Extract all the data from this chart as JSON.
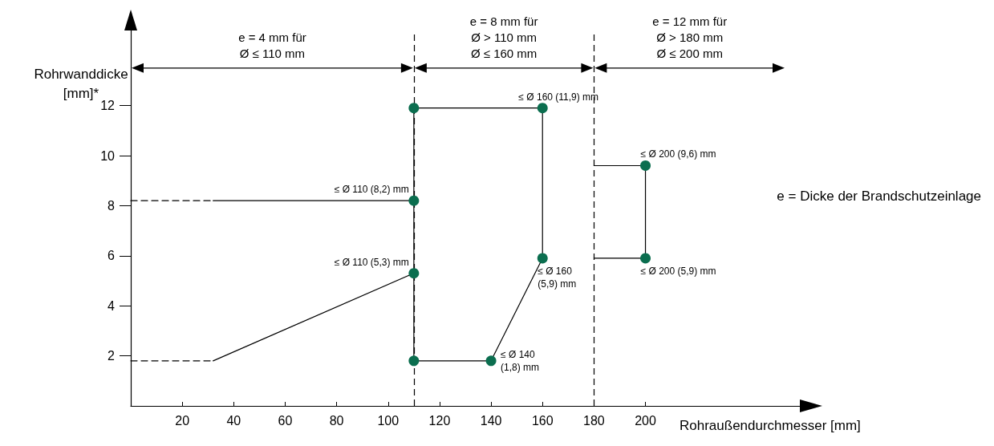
{
  "chart_data": {
    "type": "line",
    "xlabel": "Rohraußendurchmesser [mm]",
    "ylabel": "Rohrwanddicke\n[mm]*",
    "xlim": [
      0,
      260
    ],
    "xticks": [
      20,
      40,
      60,
      80,
      100,
      120,
      140,
      160,
      180,
      200
    ],
    "ylim": [
      0,
      15
    ],
    "yticks": [
      2,
      4,
      6,
      8,
      10,
      12
    ],
    "grid": false,
    "series": [
      {
        "color": "#000000",
        "line_style": "dashed",
        "marker": "none",
        "x": [
          0,
          32
        ],
        "values": [
          8.2,
          8.2
        ]
      },
      {
        "color": "#000000",
        "line_style": "solid",
        "marker": "none",
        "x": [
          32,
          110
        ],
        "values": [
          8.2,
          8.2
        ]
      },
      {
        "color": "#000000",
        "line_style": "dashed",
        "marker": "none",
        "x": [
          0,
          32
        ],
        "values": [
          1.8,
          1.8
        ]
      },
      {
        "color": "#000000",
        "line_style": "solid",
        "marker": "none",
        "x": [
          32,
          110
        ],
        "values": [
          1.8,
          5.3
        ]
      },
      {
        "color": "#000000",
        "line_style": "solid",
        "marker": "none",
        "x": [
          110,
          160
        ],
        "values": [
          11.9,
          11.9
        ]
      },
      {
        "color": "#000000",
        "line_style": "solid",
        "marker": "none",
        "x": [
          160,
          160
        ],
        "values": [
          11.9,
          5.9
        ]
      },
      {
        "color": "#000000",
        "line_style": "solid",
        "marker": "none",
        "x": [
          140,
          160
        ],
        "values": [
          1.8,
          5.9
        ]
      },
      {
        "color": "#000000",
        "line_style": "solid",
        "marker": "none",
        "x": [
          110,
          140
        ],
        "values": [
          1.8,
          1.8
        ]
      },
      {
        "color": "#000000",
        "line_style": "solid",
        "marker": "none",
        "x": [
          110,
          110
        ],
        "values": [
          1.8,
          11.9
        ]
      },
      {
        "color": "#000000",
        "line_style": "solid",
        "marker": "none",
        "x": [
          180,
          200
        ],
        "values": [
          9.6,
          9.6
        ]
      },
      {
        "color": "#000000",
        "line_style": "solid",
        "marker": "none",
        "x": [
          200,
          200
        ],
        "values": [
          9.6,
          5.9
        ]
      },
      {
        "color": "#000000",
        "line_style": "solid",
        "marker": "none",
        "x": [
          180,
          200
        ],
        "values": [
          5.9,
          5.9
        ]
      },
      {
        "type": "scatter",
        "color": "#0b6e4f",
        "marker": "circle",
        "x": [
          110,
          110,
          110,
          110,
          160,
          160,
          140,
          200,
          200
        ],
        "values": [
          11.9,
          8.2,
          5.3,
          1.8,
          11.9,
          5.9,
          1.8,
          9.6,
          5.9
        ]
      }
    ],
    "ref_lines": [
      {
        "axis": "x",
        "value": 110,
        "line_style": "dashed"
      },
      {
        "axis": "x",
        "value": 180,
        "line_style": "dashed"
      }
    ],
    "annotations": [
      "e = 4 mm für\nØ ≤ 110 mm",
      "e = 8 mm für\nØ > 110 mm\nØ ≤ 160 mm",
      "e = 12 mm für\nØ > 180 mm\nØ ≤ 200 mm",
      {
        "text": "≤ Ø 110 (8,2) mm",
        "x": 110,
        "y": 8.2
      },
      {
        "text": "≤ Ø 110 (5,3) mm",
        "x": 110,
        "y": 5.3
      },
      {
        "text": "≤ Ø 160 (11,9) mm",
        "x": 160,
        "y": 11.9
      },
      {
        "text": "≤ Ø 160\n(5,9) mm",
        "x": 160,
        "y": 5.9
      },
      {
        "text": "≤ Ø 140\n(1,8) mm",
        "x": 140,
        "y": 1.8
      },
      {
        "text": "≤ Ø 200 (9,6) mm",
        "x": 200,
        "y": 9.6
      },
      {
        "text": "≤ Ø 200 (5,9) mm",
        "x": 200,
        "y": 5.9
      },
      "e = Dicke der Brandschutzeinlage"
    ]
  }
}
